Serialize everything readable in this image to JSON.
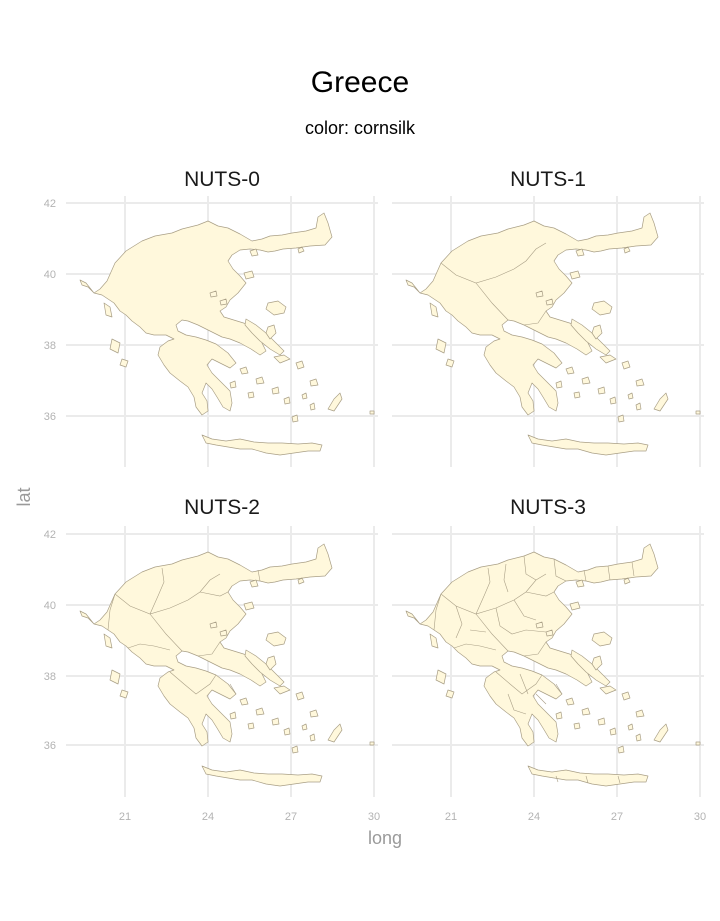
{
  "title": "Greece",
  "subtitle": "color: cornsilk",
  "colors": {
    "fill": "#fff8dc",
    "border": "#a99f86",
    "grid": "#ebebeb"
  },
  "chart_data": {
    "type": "map",
    "xlabel": "long",
    "ylabel": "lat",
    "x_ticks": [
      "21",
      "24",
      "27",
      "30"
    ],
    "y_ticks": [
      "42",
      "40",
      "38",
      "36"
    ],
    "panels": [
      {
        "label": "NUTS-0",
        "regions": 1
      },
      {
        "label": "NUTS-1",
        "regions": 4
      },
      {
        "label": "NUTS-2",
        "regions": 13
      },
      {
        "label": "NUTS-3",
        "regions": 52
      }
    ]
  }
}
